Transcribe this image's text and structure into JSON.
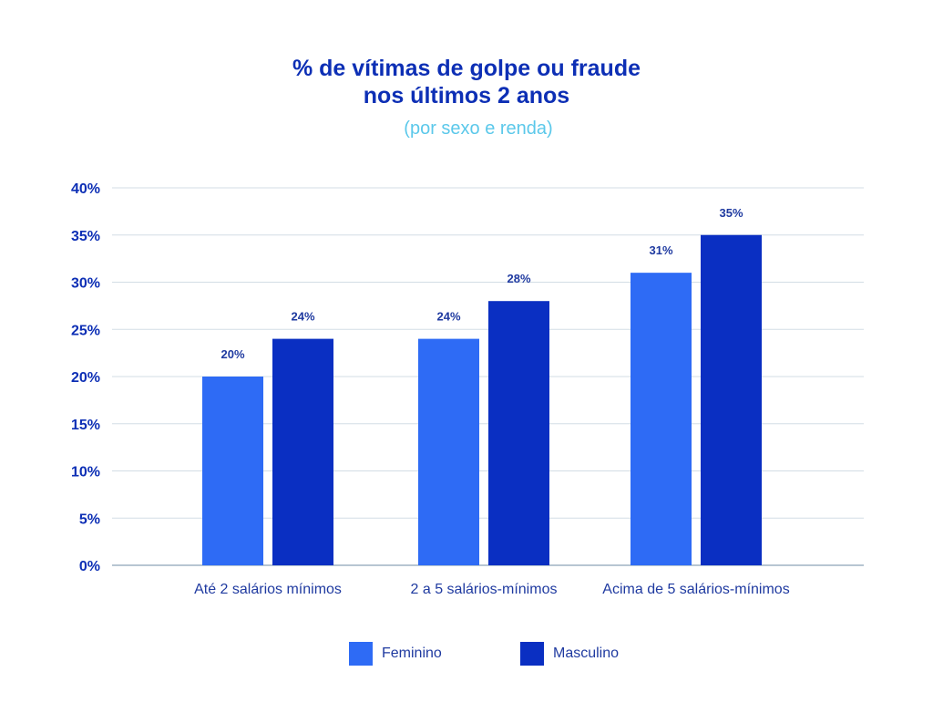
{
  "chart_data": {
    "type": "bar",
    "title_line1": "% de vítimas de golpe ou fraude",
    "title_line2": "nos últimos 2 anos",
    "subtitle": "(por sexo e renda)",
    "categories": [
      "Até 2 salários mínimos",
      "2 a 5 salários-mínimos",
      "Acima de 5 salários-mínimos"
    ],
    "series": [
      {
        "name": "Feminino",
        "values": [
          20,
          24,
          31
        ],
        "labels": [
          "20%",
          "24%",
          "31%"
        ],
        "color": "#2e6bf5"
      },
      {
        "name": "Masculino",
        "values": [
          24,
          28,
          35
        ],
        "labels": [
          "24%",
          "28%",
          "35%"
        ],
        "color": "#0a2fc2"
      }
    ],
    "ylim": [
      0,
      40
    ],
    "yticks": [
      "0%",
      "5%",
      "10%",
      "15%",
      "20%",
      "25%",
      "30%",
      "35%",
      "40%"
    ],
    "grid": true,
    "legend_position": "bottom"
  }
}
